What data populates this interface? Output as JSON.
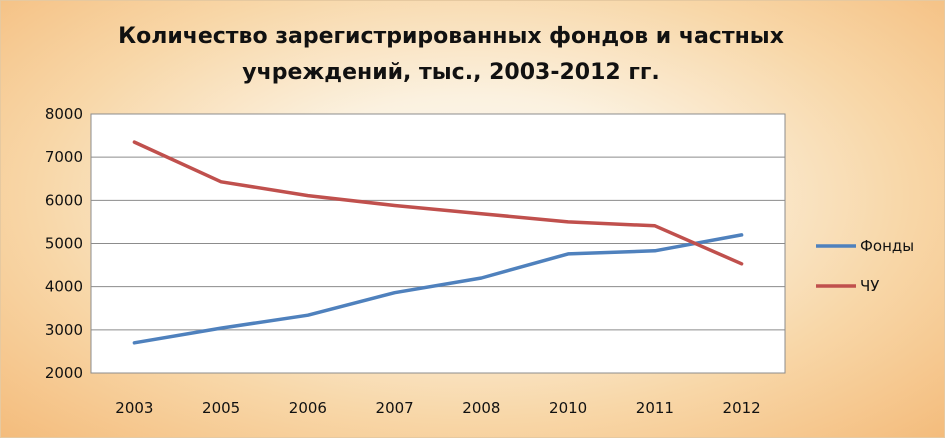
{
  "chart_data": {
    "type": "line",
    "title": "Количество зарегистрированных фондов и частных учреждений, тыс., 2003-2012 гг.",
    "categories": [
      "2003",
      "2005",
      "2006",
      "2007",
      "2008",
      "2010",
      "2011",
      "2012"
    ],
    "series": [
      {
        "name": "Фонды",
        "color": "#4f81bd",
        "values": [
          2700,
          3040,
          3340,
          3860,
          4200,
          4760,
          4830,
          5200
        ]
      },
      {
        "name": "ЧУ",
        "color": "#c0504d",
        "values": [
          7350,
          6430,
          6110,
          5880,
          5690,
          5500,
          5410,
          4530
        ]
      }
    ],
    "ylim": [
      2000,
      8000
    ],
    "yticks": [
      2000,
      3000,
      4000,
      5000,
      6000,
      7000,
      8000
    ],
    "grid": true,
    "legend_position": "right"
  }
}
